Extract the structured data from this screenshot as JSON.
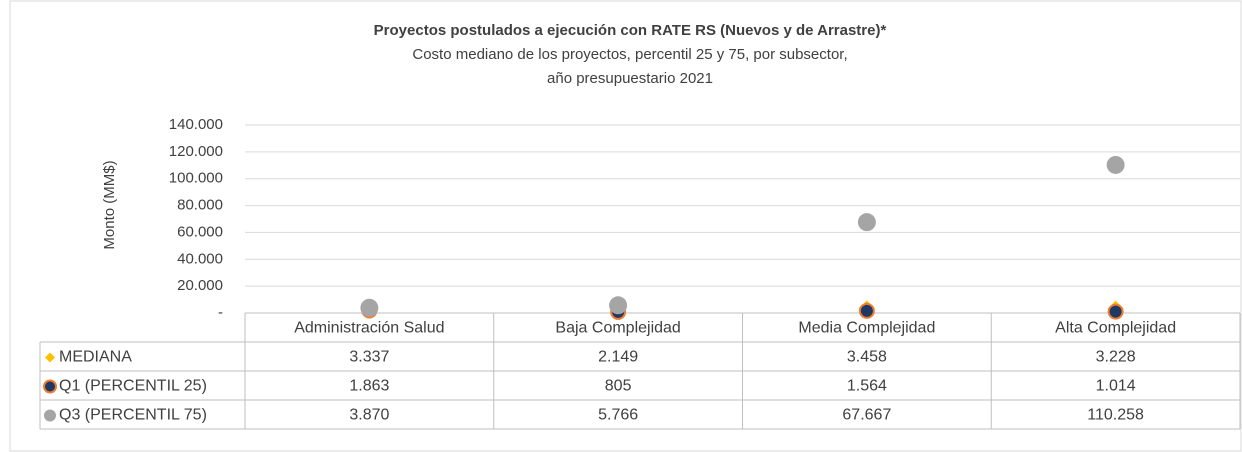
{
  "chart_data": {
    "type": "scatter",
    "title": "Proyectos postulados a ejecución con RATE RS (Nuevos y de Arrastre)*",
    "subtitle": [
      "Costo mediano de los proyectos, percentil 25 y 75, por subsector,",
      "año presupuestario 2021"
    ],
    "y_label": "Monto (MM$)",
    "categories": [
      "Administración Salud",
      "Baja Complejidad",
      "Media Complejidad",
      "Alta Complejidad"
    ],
    "series": [
      {
        "name": "MEDIANA",
        "color": "#FFC000",
        "marker": "diamond",
        "values": [
          3337,
          2149,
          3458,
          3228
        ],
        "value_labels": [
          "3.337",
          "2.149",
          "3.458",
          "3.228"
        ]
      },
      {
        "name": "Q1 (PERCENTIL 25)",
        "color": "#1F3864",
        "edge_color": "#ED7D31",
        "marker": "circle",
        "values": [
          1863,
          805,
          1564,
          1014
        ],
        "value_labels": [
          "1.863",
          "805",
          "1.564",
          "1.014"
        ]
      },
      {
        "name": "Q3 (PERCENTIL 75)",
        "color": "#A5A5A5",
        "marker": "circle",
        "values": [
          3870,
          5766,
          67667,
          110258
        ],
        "value_labels": [
          "3.870",
          "5.766",
          "67.667",
          "110.258"
        ]
      }
    ],
    "ylim": [
      0,
      140000
    ],
    "yticks": [
      {
        "value": 0,
        "label": "-"
      },
      {
        "value": 20000,
        "label": "20.000"
      },
      {
        "value": 40000,
        "label": "40.000"
      },
      {
        "value": 60000,
        "label": "60.000"
      },
      {
        "value": 80000,
        "label": "80.000"
      },
      {
        "value": 100000,
        "label": "100.000"
      },
      {
        "value": 120000,
        "label": "120.000"
      },
      {
        "value": 140000,
        "label": "140.000"
      }
    ],
    "grid": true
  }
}
